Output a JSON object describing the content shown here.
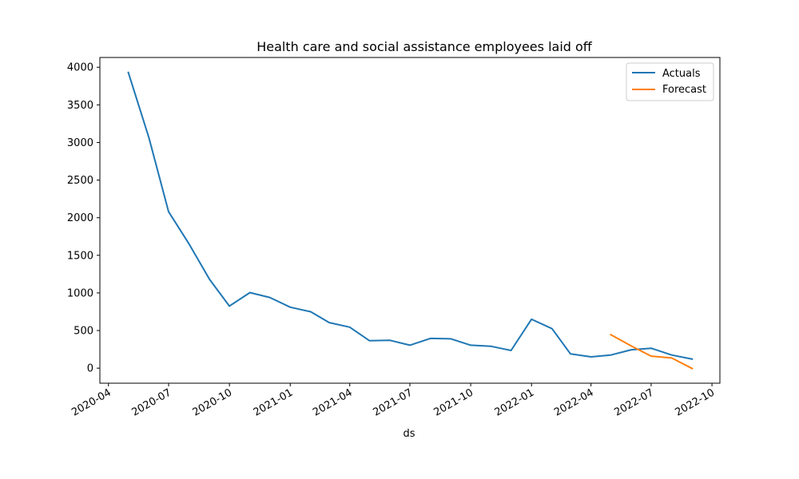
{
  "chart_data": {
    "type": "line",
    "title": "Health care and social assistance employees laid off",
    "xlabel": "ds",
    "ylabel": "",
    "x_tick_labels": [
      "2020-04",
      "2020-07",
      "2020-10",
      "2021-01",
      "2021-04",
      "2021-07",
      "2021-10",
      "2022-01",
      "2022-04",
      "2022-07",
      "2022-10"
    ],
    "x_ticks": [
      "2020-04-01",
      "2020-07-01",
      "2020-10-01",
      "2021-01-01",
      "2021-04-01",
      "2021-07-01",
      "2021-10-01",
      "2022-01-01",
      "2022-04-01",
      "2022-07-01",
      "2022-10-01"
    ],
    "y_ticks": [
      0,
      500,
      1000,
      1500,
      2000,
      2500,
      3000,
      3500,
      4000
    ],
    "xlim": [
      "2020-03-19",
      "2022-10-13"
    ],
    "ylim": [
      -200,
      4130
    ],
    "grid": false,
    "legend_position": "top-right",
    "colors": {
      "actuals": "#1f77b4",
      "forecast": "#ff7f0e"
    },
    "series": [
      {
        "name": "Actuals",
        "x": [
          "2020-05-01",
          "2020-06-01",
          "2020-07-01",
          "2020-08-01",
          "2020-09-01",
          "2020-10-01",
          "2020-11-01",
          "2020-12-01",
          "2021-01-01",
          "2021-02-01",
          "2021-03-01",
          "2021-04-01",
          "2021-05-01",
          "2021-06-01",
          "2021-07-01",
          "2021-08-01",
          "2021-09-01",
          "2021-10-01",
          "2021-11-01",
          "2021-12-01",
          "2022-01-01",
          "2022-02-01",
          "2022-03-01",
          "2022-04-01",
          "2022-05-01",
          "2022-06-01",
          "2022-07-01",
          "2022-08-01",
          "2022-09-01"
        ],
        "values": [
          3930,
          3070,
          2080,
          1650,
          1180,
          825,
          1005,
          940,
          810,
          750,
          605,
          545,
          365,
          370,
          305,
          395,
          390,
          305,
          290,
          235,
          650,
          525,
          190,
          150,
          175,
          245,
          265,
          175,
          120
        ]
      },
      {
        "name": "Forecast",
        "x": [
          "2022-05-01",
          "2022-06-01",
          "2022-07-01",
          "2022-08-01",
          "2022-09-01"
        ],
        "values": [
          445,
          295,
          160,
          135,
          -5
        ]
      }
    ]
  }
}
